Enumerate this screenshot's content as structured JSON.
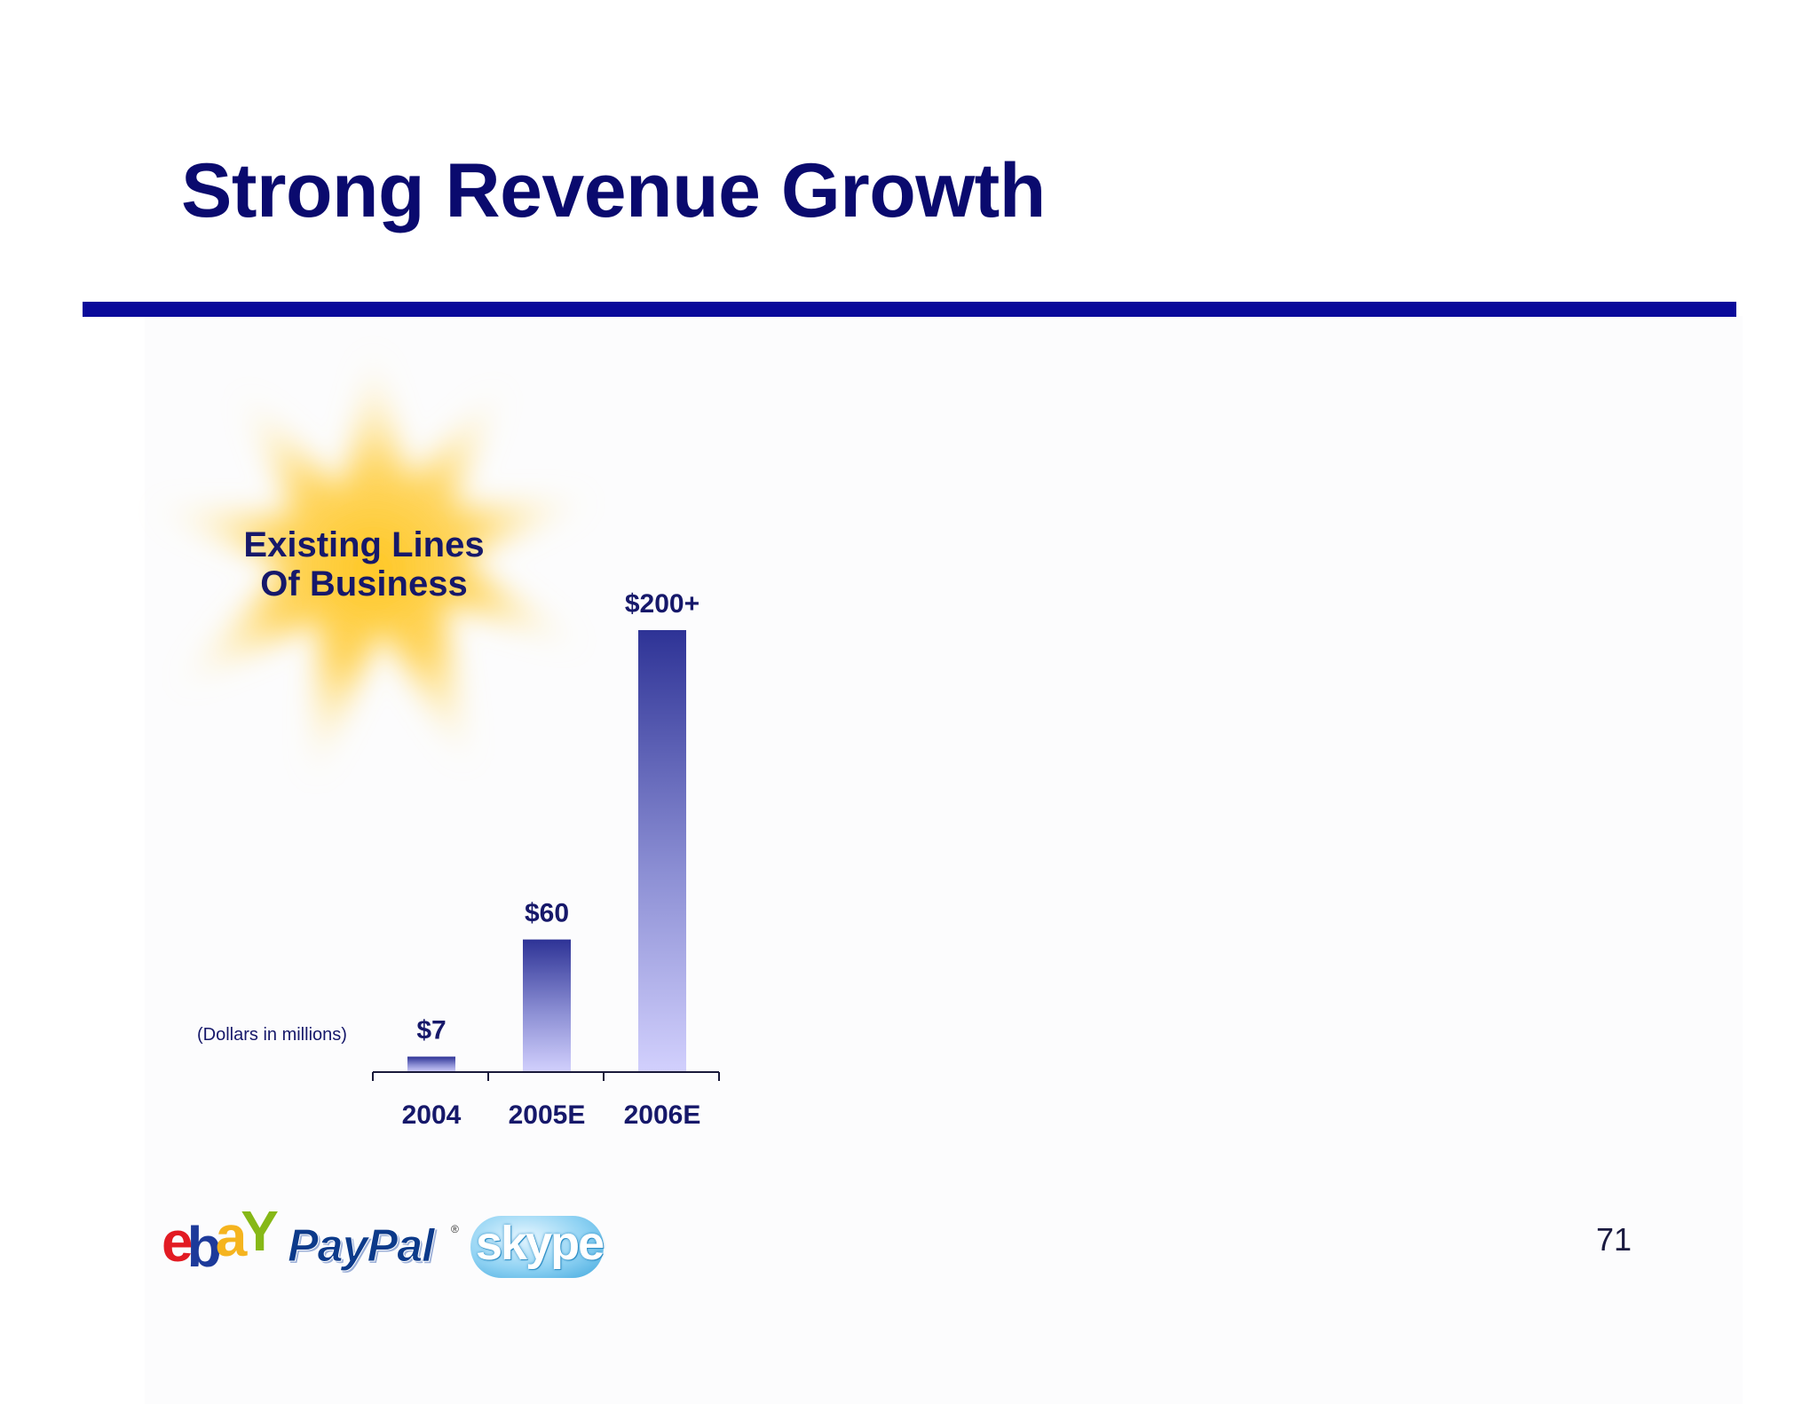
{
  "slide": {
    "title": "Strong Revenue Growth",
    "page_number": "71",
    "callout": [
      "Existing Lines",
      "Of Business"
    ],
    "units_note": "(Dollars in millions)"
  },
  "logos": {
    "ebay": "ebY",
    "paypal": "PayPal",
    "skype": "skype"
  },
  "colors": {
    "title": "#0a0a6e",
    "rule": "#0a0a9a",
    "bar_top": "#2e3396",
    "bar_bottom": "#d2d0fd",
    "burst": "#ffc61f"
  },
  "chart_data": {
    "type": "bar",
    "title": "",
    "categories": [
      "2004",
      "2005E",
      "2006E"
    ],
    "values": [
      7,
      60,
      200
    ],
    "data_labels": [
      "$7",
      "$60",
      "$200+"
    ],
    "xlabel": "",
    "ylabel": "",
    "ylim": [
      0,
      200
    ],
    "grid": false
  }
}
